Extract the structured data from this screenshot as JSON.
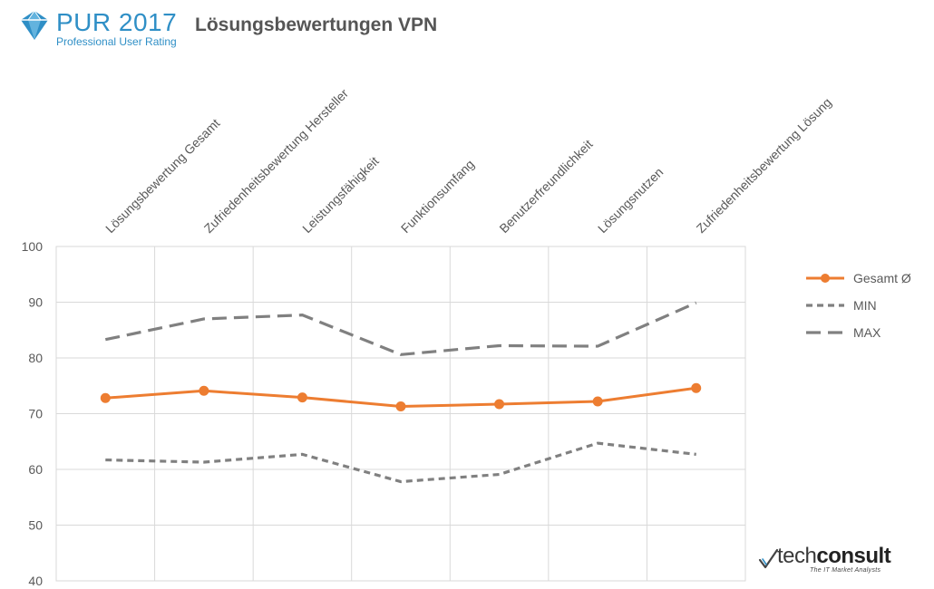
{
  "header": {
    "logo_main": "PUR 2017",
    "logo_sub": "Professional User Rating",
    "title": "Lösungsbewertungen VPN"
  },
  "footer": {
    "brand_prefix": "tech",
    "brand_suffix": "consult",
    "tagline": "The IT Market Analysts"
  },
  "colors": {
    "gesamt": "#ed7d31",
    "min_max": "#808080",
    "grid": "#d9d9d9",
    "logo": "#2f8fc6"
  },
  "chart_data": {
    "type": "line",
    "title": "",
    "xlabel": "",
    "ylabel": "",
    "ylim": [
      40,
      100
    ],
    "y_ticks": [
      100,
      90,
      80,
      70,
      60,
      50,
      40
    ],
    "grid": true,
    "legend_position": "right",
    "categories": [
      "Lösungsbewertung Gesamt",
      "Zufriedenheitsbewertung Hersteller",
      "Leistungsfähigkeit",
      "Funktionsumfang",
      "Benutzerfreundlichkeit",
      "Lösungsnutzen",
      "Zufriedenheitsbewertung Lösung"
    ],
    "series": [
      {
        "name": "Gesamt Ø",
        "values": [
          72.8,
          74.1,
          72.9,
          71.3,
          71.7,
          72.2,
          74.6
        ],
        "style": "solid-markers"
      },
      {
        "name": "MIN",
        "values": [
          61.7,
          61.3,
          62.7,
          57.8,
          59.1,
          64.7,
          62.7
        ],
        "style": "short-dash"
      },
      {
        "name": "MAX",
        "values": [
          83.3,
          87.0,
          87.7,
          80.6,
          82.2,
          82.1,
          89.9
        ],
        "style": "long-dash"
      }
    ]
  }
}
